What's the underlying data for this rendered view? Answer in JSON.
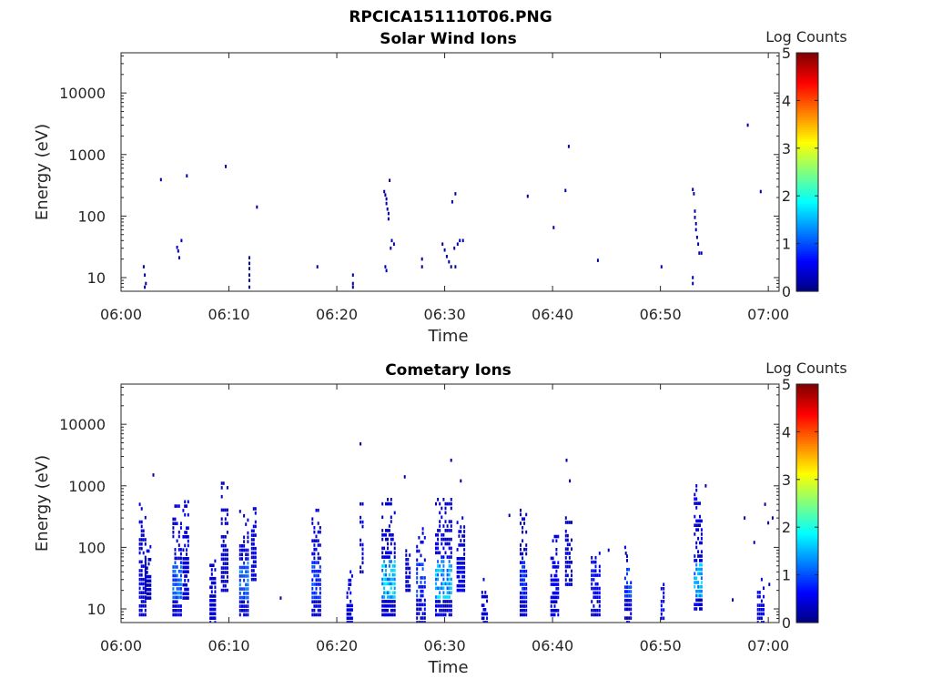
{
  "figure": {
    "filename_title": "RPCICA151110T06.PNG"
  },
  "colorbar": {
    "label": "Log Counts",
    "ticks": [
      "0",
      "1",
      "2",
      "3",
      "4",
      "5"
    ],
    "range": [
      0,
      5
    ],
    "colormap": "jet"
  },
  "chart_data": [
    {
      "type": "heatmap",
      "title": "Solar Wind Ions",
      "xlabel": "Time",
      "ylabel": "Energy (eV)",
      "x_ticks": [
        "06:00",
        "06:10",
        "06:20",
        "06:30",
        "06:40",
        "06:50",
        "07:00"
      ],
      "x_range_minutes": [
        0,
        61
      ],
      "y_scale": "log",
      "y_ticks": [
        "10",
        "100",
        "1000",
        "10000"
      ],
      "y_range": [
        6,
        45000
      ],
      "z_label": "Log Counts",
      "z_range": [
        0,
        5
      ],
      "points": [
        [
          2.1,
          15,
          0.2
        ],
        [
          2.2,
          11,
          0.2
        ],
        [
          2.3,
          8,
          0.2
        ],
        [
          2.2,
          7,
          0.2
        ],
        [
          3.7,
          390,
          0.2
        ],
        [
          5.2,
          31,
          0.3
        ],
        [
          5.3,
          27,
          0.3
        ],
        [
          5.4,
          21,
          0.2
        ],
        [
          5.6,
          40,
          0.2
        ],
        [
          6.1,
          450,
          0.2
        ],
        [
          9.7,
          640,
          0.2
        ],
        [
          11.9,
          21,
          0.2
        ],
        [
          11.9,
          17,
          0.2
        ],
        [
          11.9,
          14,
          0.2
        ],
        [
          11.9,
          11,
          0.2
        ],
        [
          11.9,
          9,
          0.2
        ],
        [
          11.9,
          7,
          0.2
        ],
        [
          12.6,
          140,
          0.2
        ],
        [
          18.2,
          15,
          0.2
        ],
        [
          21.5,
          11,
          0.2
        ],
        [
          21.5,
          8,
          0.2
        ],
        [
          21.5,
          7,
          0.2
        ],
        [
          24.4,
          250,
          0.2
        ],
        [
          24.5,
          220,
          0.2
        ],
        [
          24.6,
          190,
          0.2
        ],
        [
          24.6,
          160,
          0.2
        ],
        [
          24.7,
          130,
          0.2
        ],
        [
          24.8,
          110,
          0.2
        ],
        [
          24.8,
          90,
          0.2
        ],
        [
          24.9,
          380,
          0.2
        ],
        [
          24.5,
          15,
          0.3
        ],
        [
          24.6,
          13,
          0.3
        ],
        [
          25.0,
          30,
          0.2
        ],
        [
          25.1,
          40,
          0.2
        ],
        [
          25.3,
          35,
          0.2
        ],
        [
          27.9,
          20,
          0.2
        ],
        [
          27.9,
          15,
          0.2
        ],
        [
          29.8,
          35,
          0.2
        ],
        [
          30.0,
          28,
          0.2
        ],
        [
          30.2,
          22,
          0.2
        ],
        [
          30.4,
          18,
          0.2
        ],
        [
          30.6,
          15,
          0.2
        ],
        [
          30.7,
          170,
          0.2
        ],
        [
          31.0,
          230,
          0.2
        ],
        [
          31.2,
          35,
          0.2
        ],
        [
          31.4,
          40,
          0.2
        ],
        [
          31.7,
          40,
          0.2
        ],
        [
          31.0,
          15,
          0.3
        ],
        [
          30.9,
          30,
          0.2
        ],
        [
          37.7,
          210,
          0.2
        ],
        [
          40.1,
          65,
          0.2
        ],
        [
          41.2,
          260,
          0.2
        ],
        [
          41.5,
          1350,
          0.2
        ],
        [
          44.2,
          19,
          0.2
        ],
        [
          50.1,
          15,
          0.2
        ],
        [
          53.0,
          270,
          0.2
        ],
        [
          53.1,
          230,
          0.2
        ],
        [
          53.2,
          120,
          0.2
        ],
        [
          53.2,
          95,
          0.2
        ],
        [
          53.3,
          75,
          0.2
        ],
        [
          53.3,
          60,
          0.2
        ],
        [
          53.4,
          45,
          0.3
        ],
        [
          53.5,
          35,
          0.2
        ],
        [
          53.6,
          25,
          0.3
        ],
        [
          53.8,
          25,
          0.3
        ],
        [
          53.0,
          10,
          0.2
        ],
        [
          53.0,
          8,
          0.2
        ],
        [
          58.1,
          3000,
          0.2
        ],
        [
          59.3,
          250,
          0.2
        ]
      ]
    },
    {
      "type": "heatmap",
      "title": "Cometary Ions",
      "xlabel": "Time",
      "ylabel": "Energy (eV)",
      "x_ticks": [
        "06:00",
        "06:10",
        "06:20",
        "06:30",
        "06:40",
        "06:50",
        "07:00"
      ],
      "x_range_minutes": [
        0,
        61
      ],
      "y_scale": "log",
      "y_ticks": [
        "10",
        "100",
        "1000",
        "10000"
      ],
      "y_range": [
        6,
        45000
      ],
      "z_label": "Log Counts",
      "z_range": [
        0,
        5
      ],
      "bursts": [
        [
          2.0,
          0.7,
          8,
          500,
          0.6
        ],
        [
          2.5,
          0.6,
          15,
          120,
          0.4
        ],
        [
          5.2,
          0.9,
          8,
          550,
          1.3
        ],
        [
          6.0,
          0.6,
          15,
          550,
          0.5
        ],
        [
          8.5,
          0.6,
          6,
          60,
          0.5
        ],
        [
          9.6,
          0.7,
          20,
          1100,
          0.5
        ],
        [
          11.4,
          0.9,
          8,
          450,
          1.4
        ],
        [
          12.3,
          0.5,
          30,
          500,
          0.5
        ],
        [
          18.1,
          0.9,
          8,
          400,
          1.1
        ],
        [
          21.2,
          0.6,
          6,
          40,
          0.6
        ],
        [
          22.3,
          0.4,
          40,
          600,
          0.4
        ],
        [
          24.8,
          1.3,
          8,
          600,
          1.9
        ],
        [
          26.6,
          0.5,
          20,
          200,
          0.5
        ],
        [
          27.8,
          0.9,
          6,
          200,
          1.1
        ],
        [
          29.9,
          1.6,
          8,
          600,
          1.8
        ],
        [
          31.5,
          0.8,
          20,
          300,
          0.7
        ],
        [
          33.7,
          0.6,
          6,
          30,
          0.5
        ],
        [
          37.3,
          0.7,
          8,
          400,
          1.0
        ],
        [
          40.2,
          0.8,
          8,
          150,
          0.7
        ],
        [
          41.5,
          0.7,
          25,
          300,
          0.6
        ],
        [
          44.0,
          0.9,
          8,
          80,
          0.7
        ],
        [
          47.0,
          0.7,
          6,
          100,
          1.1
        ],
        [
          50.2,
          0.4,
          6,
          40,
          0.5
        ],
        [
          53.5,
          0.8,
          10,
          1000,
          1.8
        ],
        [
          59.3,
          0.7,
          6,
          30,
          0.7
        ]
      ],
      "sparse": [
        [
          3.0,
          1500,
          0.2
        ],
        [
          22.2,
          4800,
          0.2
        ],
        [
          26.3,
          1400,
          0.2
        ],
        [
          30.6,
          2600,
          0.2
        ],
        [
          31.5,
          1200,
          0.2
        ],
        [
          41.3,
          2600,
          0.2
        ],
        [
          41.6,
          1200,
          0.2
        ],
        [
          36.0,
          330,
          0.2
        ],
        [
          54.2,
          1000,
          0.2
        ],
        [
          57.8,
          300,
          0.2
        ],
        [
          58.7,
          120,
          0.2
        ],
        [
          60.0,
          250,
          0.2
        ],
        [
          60.4,
          300,
          0.2
        ],
        [
          59.7,
          500,
          0.2
        ],
        [
          45.2,
          90,
          0.2
        ],
        [
          46.8,
          80,
          0.2
        ],
        [
          14.8,
          15,
          0.2
        ],
        [
          56.7,
          14,
          0.2
        ],
        [
          60.1,
          25,
          0.2
        ]
      ]
    }
  ]
}
